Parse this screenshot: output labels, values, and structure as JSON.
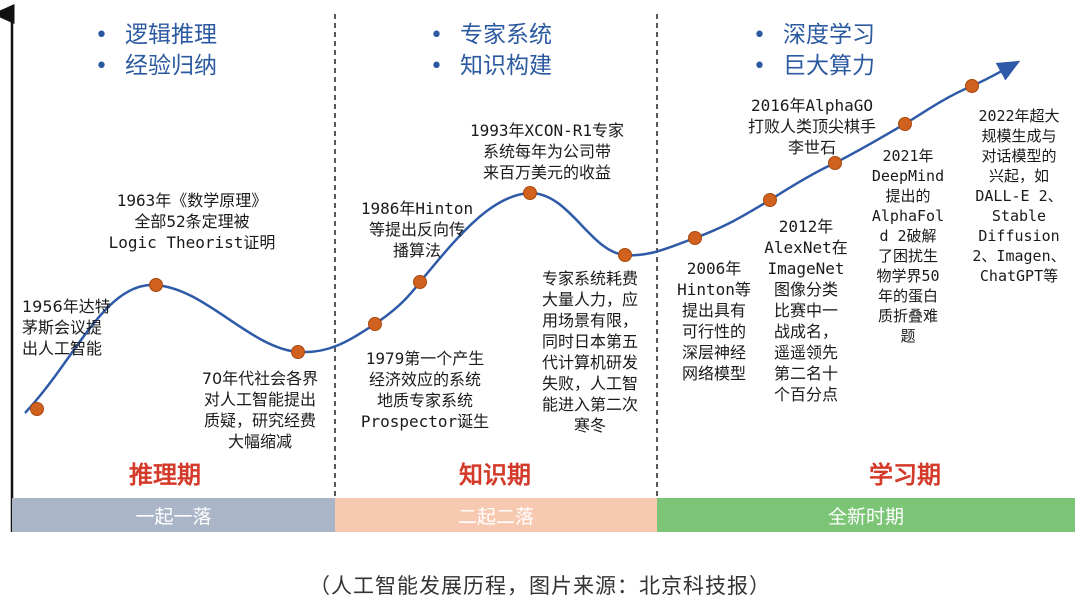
{
  "phases": [
    {
      "bullets": [
        "逻辑推理",
        "经验归纳"
      ],
      "period_label": "推理期",
      "band_label": "一起一落",
      "band_color": "#aab5c8"
    },
    {
      "bullets": [
        "专家系统",
        "知识构建"
      ],
      "period_label": "知识期",
      "band_label": "二起二落",
      "band_color": "#f7c9b1"
    },
    {
      "bullets": [
        "深度学习",
        "巨大算力"
      ],
      "period_label": "学习期",
      "band_label": "全新时期",
      "band_color": "#7cc576"
    }
  ],
  "events": [
    "1956年达特\n茅斯会议提\n出人工智能",
    "1963年《数学原理》\n全部52条定理被\nLogic Theorist证明",
    "70年代社会各界\n对人工智能提出\n质疑，研究经费\n大幅缩减",
    "1979第一个产生\n经济效应的系统\n地质专家系统\nProspector诞生",
    "1986年Hinton\n等提出反向传\n播算法",
    "1993年XCON-R1专家\n系统每年为公司带\n来百万美元的收益",
    "专家系统耗费\n大量人力，应\n用场景有限，\n同时日本第五\n代计算机研发\n失败，人工智\n能进入第二次\n寒冬",
    "2006年\nHinton等\n提出具有\n可行性的\n深层神经\n网络模型",
    "2012年\nAlexNet在\nImageNet\n图像分类\n比赛中一\n战成名，\n遥遥领先\n第二名十\n个百分点",
    "2016年AlphaGO\n打败人类顶尖棋手\n李世石",
    "2021年\nDeepMind\n提出的\nAlphaFol\nd 2破解\n了困扰生\n物学界50\n年的蛋白\n质折叠难\n题",
    "2022年超大\n规模生成与\n对话模型的\n兴起，如\nDALL-E 2、\nStable\nDiffusion\n2、Imagen、\nChatGPT等"
  ],
  "caption": "（人工智能发展历程，图片来源：北京科技报）",
  "colors": {
    "curve": "#2e5aa8",
    "marker": "#d0611e",
    "marker_stroke": "#a8480f",
    "divider": "#222222",
    "period_text": "#d43a2a",
    "bullet_text": "#2c5aa0"
  }
}
